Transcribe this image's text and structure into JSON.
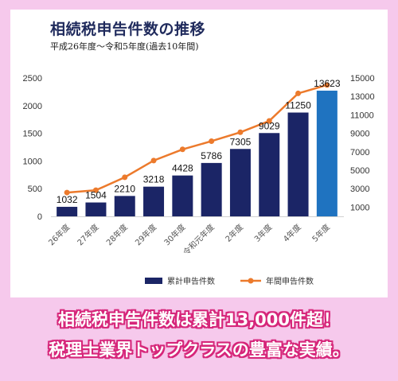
{
  "title": "相続税申告件数の推移",
  "subtitle": "平成26年度〜令和5年度(過去10年間)",
  "caption_line1": "相続税申告件数は累計13,000件超！",
  "caption_line2": "税理士業界トップクラスの豊富な実績。",
  "colors": {
    "bar": "#1b2566",
    "bar_highlight": "#1f73c0",
    "line": "#ec7a2c",
    "background": "#f6c9ec",
    "caption_outline": "#d6267a"
  },
  "chart_data": {
    "type": "bar",
    "categories": [
      "26年度",
      "27年度",
      "28年度",
      "29年度",
      "30年度",
      "令和元年度",
      "2年度",
      "3年度",
      "4年度",
      "5年度"
    ],
    "series": [
      {
        "name": "累計申告件数",
        "type": "bar",
        "axis": "right",
        "values": [
          1032,
          1504,
          2210,
          3218,
          4428,
          5786,
          7305,
          9029,
          11250,
          13623
        ]
      },
      {
        "name": "年間申告件数",
        "type": "line",
        "axis": "left",
        "values": [
          430,
          472,
          706,
          1008,
          1210,
          1358,
          1519,
          1724,
          2221,
          2373
        ]
      }
    ],
    "data_labels": [
      "1032",
      "1504",
      "2210",
      "3218",
      "4428",
      "5786",
      "7305",
      "9029",
      "11250",
      "13623"
    ],
    "left_axis": {
      "ylim": [
        0,
        2500
      ],
      "ticks": [
        "0",
        "500",
        "1000",
        "1500",
        "2000",
        "2500"
      ]
    },
    "right_axis": {
      "ylim": [
        0,
        15000
      ],
      "ticks": [
        "1000",
        "3000",
        "5000",
        "7000",
        "9000",
        "11000",
        "13000",
        "15000"
      ]
    },
    "legend_position": "bottom",
    "grid": false
  }
}
